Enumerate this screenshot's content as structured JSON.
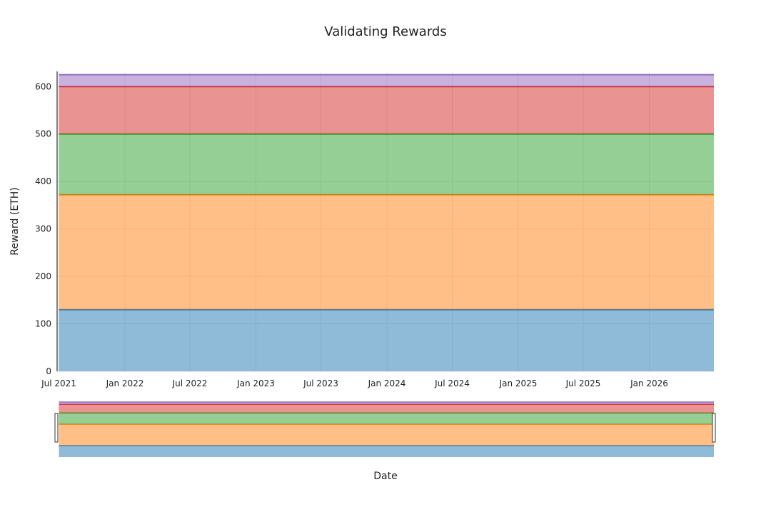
{
  "chart_data": {
    "type": "area",
    "title": "Validating Rewards",
    "xlabel": "Date",
    "ylabel": "Reward (ETH)",
    "x": [
      "2021-07-01",
      "2026-06-30"
    ],
    "xlim": [
      "2021-06-26",
      "2026-06-30"
    ],
    "ylim": [
      0,
      632
    ],
    "y_ticks": [
      0,
      100,
      200,
      300,
      400,
      500,
      600
    ],
    "x_ticks": [
      "2021-07-01",
      "2022-01-01",
      "2022-07-01",
      "2023-01-01",
      "2023-07-01",
      "2024-01-01",
      "2024-07-01",
      "2025-01-01",
      "2025-07-01",
      "2026-01-01"
    ],
    "x_tick_labels": [
      "Jul 2021",
      "Jan 2022",
      "Jul 2022",
      "Jan 2023",
      "Jul 2023",
      "Jan 2024",
      "Jul 2024",
      "Jan 2025",
      "Jul 2025",
      "Jan 2026"
    ],
    "stacked": true,
    "grid": true,
    "legend": "none",
    "range_slider": true,
    "series": [
      {
        "values": [
          130,
          130
        ],
        "color": "#1f77b4"
      },
      {
        "values": [
          242,
          242
        ],
        "color": "#ff7f0e"
      },
      {
        "values": [
          128,
          128
        ],
        "color": "#2ca02c"
      },
      {
        "values": [
          100,
          100
        ],
        "color": "#d62728"
      },
      {
        "values": [
          25,
          25
        ],
        "color": "#9467bd"
      }
    ]
  }
}
